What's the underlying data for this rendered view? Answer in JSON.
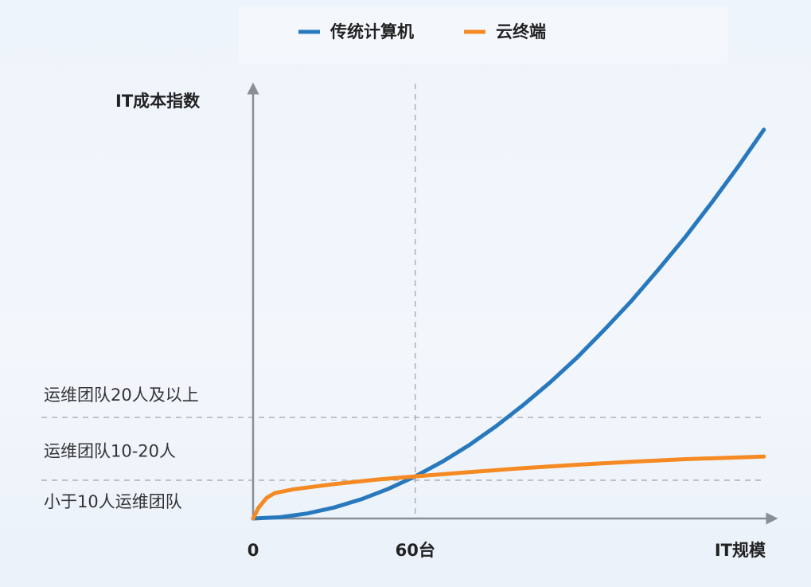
{
  "chart_data": {
    "type": "line",
    "y_label": "IT成本指数",
    "x_label": "IT规模",
    "xlim": [
      0,
      192
    ],
    "ylim": [
      0,
      100
    ],
    "xticks": [
      0,
      {
        "value": 60,
        "label": "60台"
      }
    ],
    "vline": 60,
    "hlines": [
      8.9,
      23.5
    ],
    "band_labels": [
      "小于10人运维团队",
      "运维团队10-20人",
      "运维团队20人及以上"
    ],
    "series": [
      {
        "name": "传统计算机",
        "color": "#2878bd",
        "x": [
          0,
          10,
          20,
          30,
          40,
          50,
          60,
          70,
          80,
          90,
          100,
          110,
          120,
          130,
          140,
          150,
          160,
          170,
          180,
          189
        ],
        "values": [
          0,
          0.3,
          1.17,
          2.56,
          4.47,
          6.89,
          9.8,
          13.2,
          17.1,
          21.5,
          26.4,
          31.7,
          37.5,
          43.9,
          50.6,
          57.9,
          65.5,
          73.7,
          82.3,
          90.4
        ]
      },
      {
        "name": "云终端",
        "color": "#f58a23",
        "x": [
          0,
          2,
          5,
          8,
          15,
          30,
          45,
          60,
          80,
          100,
          120,
          140,
          160,
          189
        ],
        "values": [
          0,
          2.5,
          4.8,
          5.9,
          6.8,
          8.0,
          9.0,
          9.8,
          10.8,
          11.7,
          12.5,
          13.2,
          13.8,
          14.4
        ]
      }
    ]
  }
}
